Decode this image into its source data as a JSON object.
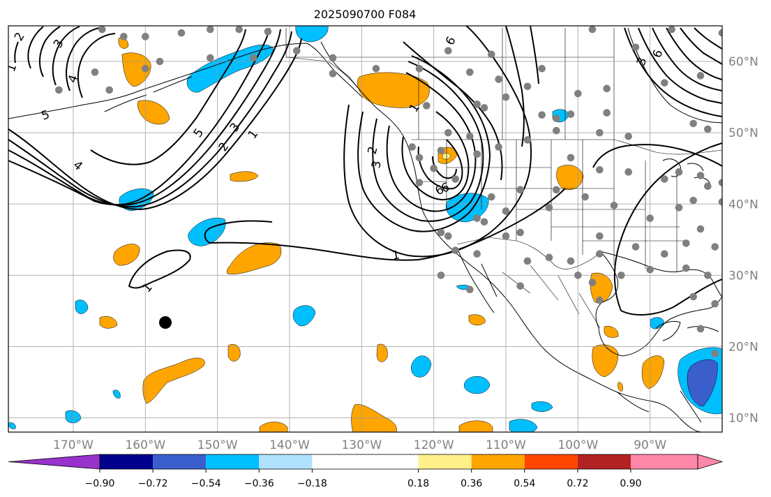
{
  "title": "2025090700 F084",
  "map": {
    "lat_labels": [
      "60°N",
      "50°N",
      "40°N",
      "30°N",
      "20°N",
      "10°N"
    ],
    "lat_values": [
      60,
      50,
      40,
      30,
      20,
      10
    ],
    "lon_labels": [
      "170°W",
      "160°W",
      "150°W",
      "140°W",
      "130°W",
      "120°W",
      "110°W",
      "100°W",
      "90°W"
    ],
    "lon_values": [
      -170,
      -160,
      -150,
      -140,
      -130,
      -120,
      -110,
      -100,
      -90
    ],
    "extent": {
      "lon_min": -179,
      "lon_max": -80,
      "lat_min": 8,
      "lat_max": 65
    },
    "grid": true,
    "contour_labels": [
      "1",
      "1",
      "1",
      "2",
      "3",
      "4",
      "5",
      "6",
      "6",
      "3",
      "2",
      "1",
      "1",
      "2",
      "3",
      "6",
      "4",
      "5",
      "3",
      "6"
    ],
    "fill_colors": {
      "orange": "#ffa500",
      "light_blue": "#00bfff",
      "mid_blue": "#3a5fcd",
      "yellow": "#fff08a"
    }
  },
  "colorbar": {
    "tick_labels": [
      "−0.90",
      "−0.72",
      "−0.54",
      "−0.36",
      "−0.18",
      "0.18",
      "0.36",
      "0.54",
      "0.72",
      "0.90"
    ],
    "colors": [
      "#9932cc",
      "#00008b",
      "#3a5fcd",
      "#00bfff",
      "#b0e2ff",
      "#ffffff",
      "#fff08a",
      "#ffa500",
      "#ff4500",
      "#b22222",
      "#ff88aa",
      "#ff88aa"
    ]
  }
}
